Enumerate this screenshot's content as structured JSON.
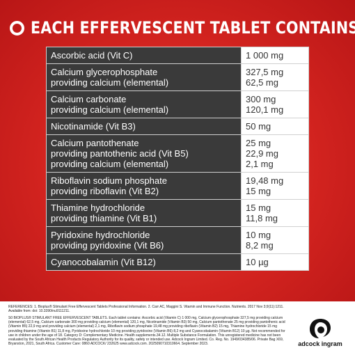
{
  "header": {
    "title": "EACH EFFERVESCENT TABLET CONTAINS"
  },
  "rows": [
    {
      "names": [
        "Ascorbic acid (Vit C)"
      ],
      "values": [
        "1 000 mg"
      ]
    },
    {
      "names": [
        "Calcium glycerophosphate",
        "providing calcium (elemental)"
      ],
      "values": [
        "327,5 mg",
        "62,5 mg"
      ]
    },
    {
      "names": [
        "Calcium carbonate",
        "providing calcium (elemental)"
      ],
      "values": [
        "300 mg",
        "120,1 mg"
      ]
    },
    {
      "names": [
        "Nicotinamide (Vit B3)"
      ],
      "values": [
        "50 mg"
      ]
    },
    {
      "names": [
        "Calcium pantothenate",
        "providing pantothenic acid (Vit B5)",
        "providing calcium (elemental)"
      ],
      "values": [
        "25 mg",
        "22,9 mg",
        "2,1 mg"
      ]
    },
    {
      "names": [
        "Riboflavin sodium phosphate",
        "providing riboflavin (Vit B2)"
      ],
      "values": [
        "19,48 mg",
        "15 mg"
      ]
    },
    {
      "names": [
        "Thiamine hydrochloride",
        "providing thiamine (Vit B1)"
      ],
      "values": [
        "15 mg",
        "11,8 mg"
      ]
    },
    {
      "names": [
        "Pyridoxine hydrochloride",
        "providing pyridoxine (Vit B6)"
      ],
      "values": [
        "10 mg",
        "8,2 mg"
      ]
    },
    {
      "names": [
        "Cyanocobalamin (Vit B12)"
      ],
      "values": [
        "10 µg"
      ]
    }
  ],
  "footer": {
    "references": "REFERENCES: 1. Bioplus® Stimulant Free Effervescent Tablets Professional Information. 2. Carr AC, Maggini S. Vitamin and Immune Function. Nutrients. 2017 Nov 3;9(11):1211. Available from: doi: 10.3390/nu9111211.",
    "body": "S0 BIOPLUS® STIMULANT FREE EFFERVESCENT TABLETS. Each tablet contains: Ascorbic acid (Vitamin C) 1 000 mg, Calcium glycerophosphate 327,5 mg providing calcium (elemental) 62,5 mg, Calcium carbonate 300 mg providing calcium (elemental) 120,1 mg, Nicotinamide (Vitamin B3) 50 mg, Calcium pantothenate 25 mg providing pantothenic acid (Vitamin B5) 22,9 mg and providing calcium (elemental) 2,1 mg, Riboflavin sodium phosphate 19,48 mg providing riboflavin (Vitamin B2) 15 mg, Thiamine hydrochloride 15 mg providing thiamine (Vitamin B1) 11,8 mg, Pyridoxine hydrochloride 10 mg providing pyridoxine (Vitamin B6) 8,2 mg and Cyanocobalamin (Vitamin B12) 10 µg. Not recommended for use in children under the age of 18. Category D: Complementary Medicine. Health supplements.34.12. Multiple Substance Formulation. This unregistered medicine has not been evaluated by the South African Health Products Regulatory Authority for its quality, safety or intended use. Adcock Ingram Limited. Co. Reg. No. 1949/034385/06. Private Bag X69, Bryanston, 2021, South Africa. Customer Care: 0860 ADCOCK/ 232625 www.adcock.com. 2025090710310664. September 2023.",
    "brand": "adcock ingram"
  },
  "colors": {
    "accent_red": "#d2231f",
    "name_cell": "#3a3a3a",
    "value_cell": "#ffffff"
  }
}
